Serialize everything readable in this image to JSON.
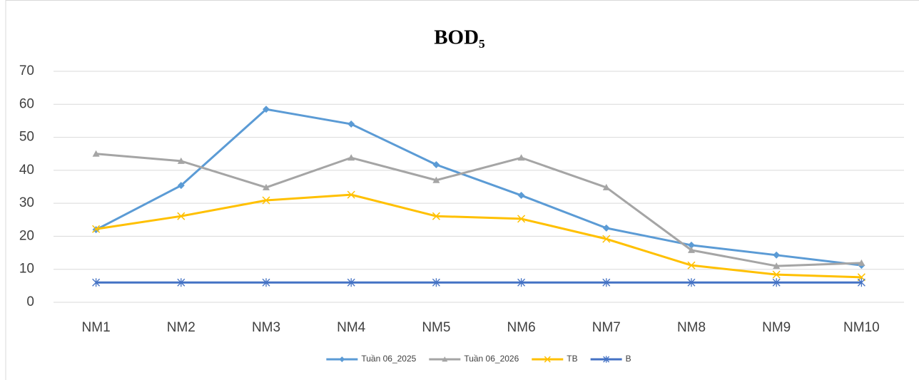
{
  "chart_data": {
    "type": "line",
    "title": "BOD₅",
    "categories": [
      "NM1",
      "NM2",
      "NM3",
      "NM4",
      "NM5",
      "NM6",
      "NM7",
      "NM8",
      "NM9",
      "NM10"
    ],
    "series": [
      {
        "name": "Tuần 06_2025",
        "color": "#5b9bd5",
        "marker": "diamond",
        "values": [
          22,
          35.4,
          58.5,
          54,
          41.7,
          32.4,
          22.5,
          17.3,
          14.3,
          11.2
        ]
      },
      {
        "name": "Tuần 06_2026",
        "color": "#a5a5a5",
        "marker": "triangle",
        "values": [
          45,
          42.8,
          34.8,
          43.8,
          37,
          43.8,
          34.8,
          15.8,
          11,
          11.9
        ]
      },
      {
        "name": "TB",
        "color": "#ffc000",
        "marker": "x",
        "values": [
          22.2,
          26.1,
          30.9,
          32.6,
          26.1,
          25.3,
          19.2,
          11.2,
          8.4,
          7.6
        ]
      },
      {
        "name": "B",
        "color": "#4472c4",
        "marker": "asterisk",
        "values": [
          6,
          6,
          6,
          6,
          6,
          6,
          6,
          6,
          6,
          6
        ]
      }
    ],
    "ylim": [
      0,
      70
    ],
    "yticks": [
      0,
      10,
      20,
      30,
      40,
      50,
      60,
      70
    ],
    "grid": true,
    "legend": "bottom"
  }
}
